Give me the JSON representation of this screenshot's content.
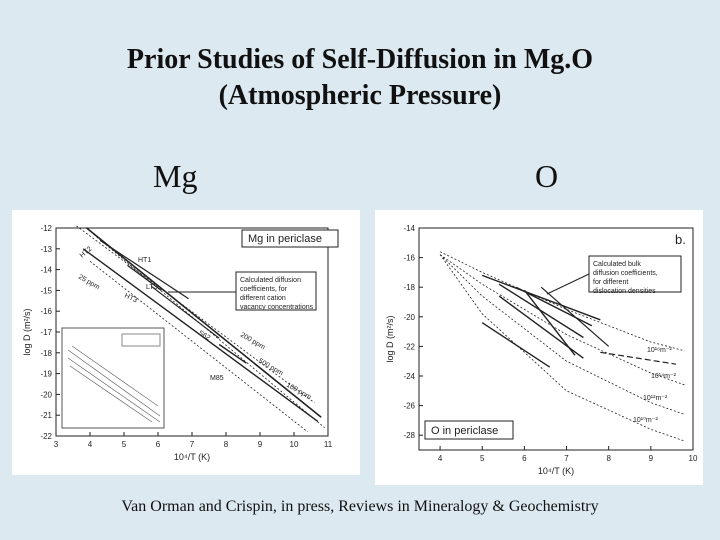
{
  "slide": {
    "title_line1": "Prior Studies of Self-Diffusion in Mg.O",
    "title_line2": "(Atmospheric Pressure)",
    "label_mg": "Mg",
    "label_o": "O",
    "footer": "Van Orman and Crispin, in press, Reviews in Mineralogy & Geochemistry"
  },
  "chart_data": [
    {
      "type": "line",
      "xlabel": "10⁴/T (K)",
      "ylabel": "log D (m²/s)",
      "xlim": [
        3,
        11
      ],
      "ylim": [
        -22,
        -12
      ],
      "x_ticks": [
        "3",
        "4",
        "5",
        "6",
        "7",
        "8",
        "9",
        "10",
        "11"
      ],
      "y_ticks": [
        "-12",
        "-13",
        "-14",
        "-15",
        "-16",
        "-17",
        "-18",
        "-19",
        "-20",
        "-21",
        "-22"
      ],
      "legend_box": "Mg in periclase",
      "callout": "Calculated diffusion coefficients, for different cation vacancy concentrations",
      "line_labels": [
        "HT2",
        "HT1",
        "25 ppm",
        "HT3",
        "LT3",
        "S62",
        "200 ppm",
        "500 ppm",
        "100 ppm",
        "M85"
      ],
      "series": [
        {
          "values": [
            [
              3.6,
              -11.9
            ],
            [
              10.6,
              -20.4
            ]
          ]
        },
        {
          "values": [
            [
              3.9,
              -12.0
            ],
            [
              10.8,
              -21.1
            ]
          ]
        },
        {
          "values": [
            [
              4.1,
              -12.3
            ],
            [
              10.9,
              -21.6
            ]
          ]
        },
        {
          "values": [
            [
              3.8,
              -13.0
            ],
            [
              10.7,
              -21.3
            ]
          ]
        },
        {
          "values": [
            [
              4.0,
              -13.6
            ],
            [
              10.4,
              -21.8
            ]
          ]
        },
        {
          "values": [
            [
              4.3,
              -12.6
            ],
            [
              6.9,
              -15.4
            ]
          ]
        },
        {
          "values": [
            [
              5.1,
              -13.8
            ],
            [
              6.1,
              -15.0
            ]
          ]
        },
        {
          "values": [
            [
              5.8,
              -14.8
            ],
            [
              7.8,
              -17.3
            ]
          ]
        },
        {
          "values": [
            [
              7.8,
              -17.6
            ],
            [
              8.6,
              -18.5
            ]
          ]
        }
      ]
    },
    {
      "type": "line",
      "xlabel": "10⁴/T (K)",
      "ylabel": "log D (m²/s)",
      "xlim": [
        3.5,
        10
      ],
      "ylim": [
        -29,
        -14
      ],
      "x_ticks": [
        "4",
        "5",
        "6",
        "7",
        "8",
        "9",
        "10"
      ],
      "y_ticks": [
        "-14",
        "-16",
        "-18",
        "-20",
        "-22",
        "-24",
        "-26",
        "-28"
      ],
      "panel_letter": "b.",
      "legend_box": "O in periclase",
      "callout": "Calculated bulk diffusion coefficients, for different dislocation densities",
      "line_labels": [
        "10¹⁶m⁻²",
        "10¹⁴m⁻²",
        "10¹²m⁻²",
        "10¹⁰m⁻²"
      ],
      "series": [
        {
          "values": [
            [
              4.0,
              -15.6
            ],
            [
              5.0,
              -17.0
            ],
            [
              7.0,
              -19.5
            ],
            [
              9.0,
              -21.7
            ],
            [
              9.8,
              -22.3
            ]
          ]
        },
        {
          "values": [
            [
              4.0,
              -15.8
            ],
            [
              5.0,
              -17.8
            ],
            [
              7.0,
              -21.2
            ],
            [
              9.0,
              -23.8
            ],
            [
              9.8,
              -24.6
            ]
          ]
        },
        {
          "values": [
            [
              4.0,
              -15.8
            ],
            [
              5.0,
              -18.6
            ],
            [
              7.0,
              -23.0
            ],
            [
              9.0,
              -25.8
            ],
            [
              9.8,
              -26.6
            ]
          ]
        },
        {
          "values": [
            [
              4.0,
              -15.8
            ],
            [
              5.0,
              -19.8
            ],
            [
              7.0,
              -25.0
            ],
            [
              9.0,
              -27.6
            ],
            [
              9.8,
              -28.4
            ]
          ]
        },
        {
          "values": [
            [
              5.0,
              -17.2
            ],
            [
              7.8,
              -20.2
            ]
          ]
        },
        {
          "values": [
            [
              5.4,
              -17.8
            ],
            [
              7.4,
              -21.4
            ]
          ]
        },
        {
          "values": [
            [
              5.8,
              -18.0
            ],
            [
              7.6,
              -20.6
            ]
          ]
        },
        {
          "values": [
            [
              6.0,
              -18.2
            ],
            [
              7.2,
              -22.6
            ]
          ]
        },
        {
          "values": [
            [
              5.4,
              -18.6
            ],
            [
              7.4,
              -22.8
            ]
          ]
        },
        {
          "values": [
            [
              5.0,
              -20.4
            ],
            [
              6.6,
              -23.4
            ]
          ]
        },
        {
          "values": [
            [
              6.4,
              -18.0
            ],
            [
              8.0,
              -22.0
            ]
          ]
        },
        {
          "values": [
            [
              7.8,
              -22.4
            ],
            [
              9.6,
              -23.2
            ]
          ]
        }
      ]
    }
  ]
}
